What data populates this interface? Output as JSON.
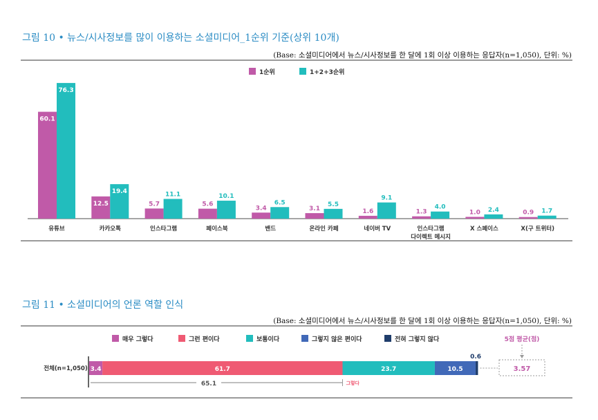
{
  "colors": {
    "title": "#2b8cc4",
    "rank1": "#c05aa8",
    "rank123": "#22bdbd",
    "very_yes": "#c05aa8",
    "yes": "#ef5a73",
    "neutral": "#22bdbd",
    "no": "#4169b8",
    "never": "#1f3d6b",
    "avg": "#c05aa8"
  },
  "figure10": {
    "title": "그림 10 • 뉴스/시사정보를 많이 이용하는 소셜미디어_1순위 기준(상위 10개)",
    "base": "(Base: 소셜미디어에서 뉴스/시사정보를 한 달에 1회 이상 이용하는 응답자(n=1,050), 단위: %)"
  },
  "figure11": {
    "title": "그림 11 • 소셜미디어의 언론 역할 인식",
    "base": "(Base: 소셜미디어에서 뉴스/시사정보를 한 달에 1회 이상 이용하는 응답자(n=1,050), 단위: %)",
    "avg_label": "5점 평균(점)",
    "avg_value": "3.57",
    "sum_value": "65.1",
    "sum_label": "그렇다"
  },
  "chart_data": [
    {
      "type": "bar",
      "categories": [
        "유튜브",
        "카카오톡",
        "인스타그램",
        "페이스북",
        "밴드",
        "온라인 카페",
        "네이버 TV",
        "인스타그램 다이렉트 메시지",
        "X 스페이스",
        "X(구 트위터)"
      ],
      "series": [
        {
          "name": "1순위",
          "values": [
            60.1,
            12.5,
            5.7,
            5.6,
            3.4,
            3.1,
            1.6,
            1.3,
            1.0,
            0.9
          ]
        },
        {
          "name": "1+2+3순위",
          "values": [
            76.3,
            19.4,
            11.1,
            10.1,
            6.5,
            5.5,
            9.1,
            4.0,
            2.4,
            1.7
          ]
        }
      ],
      "legend": "top-center",
      "grid": false
    },
    {
      "type": "bar",
      "orientation": "horizontal-stacked",
      "categories": [
        "전체(n=1,050)"
      ],
      "series": [
        {
          "name": "매우 그렇다",
          "values": [
            3.4
          ]
        },
        {
          "name": "그런 편이다",
          "values": [
            61.7
          ]
        },
        {
          "name": "보통이다",
          "values": [
            23.7
          ]
        },
        {
          "name": "그렇지 않은 편이다",
          "values": [
            10.5
          ]
        },
        {
          "name": "전혀 그렇지 않다",
          "values": [
            0.6
          ]
        }
      ],
      "legend": "top",
      "grid": false
    }
  ]
}
